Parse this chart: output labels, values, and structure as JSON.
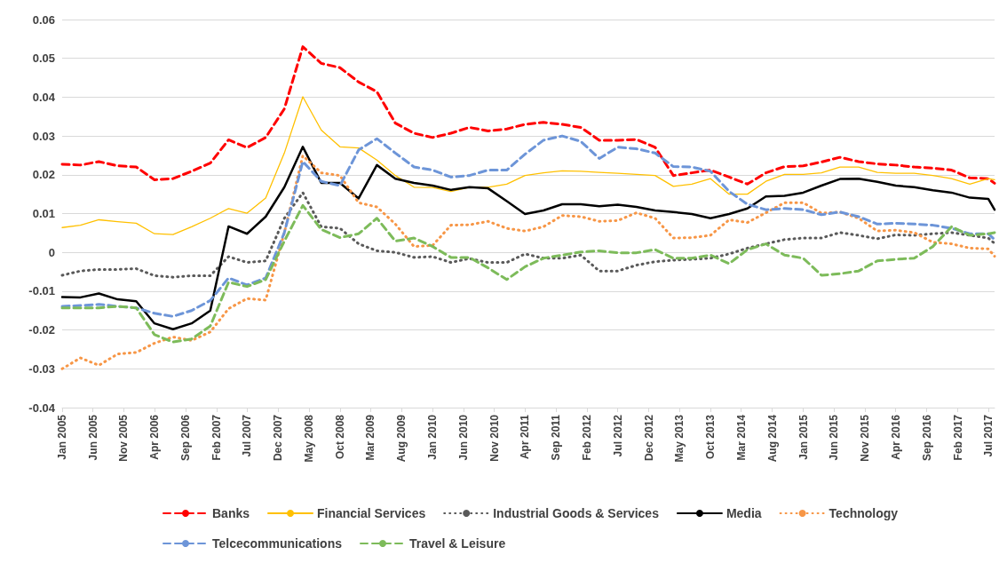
{
  "chart_data": {
    "type": "line",
    "grid": "y",
    "legend": "bottom",
    "marker": "none",
    "x": [
      "2005-01",
      "2005-04",
      "2005-07",
      "2005-10",
      "2006-01",
      "2006-04",
      "2006-07",
      "2006-10",
      "2007-01",
      "2007-04",
      "2007-07",
      "2007-10",
      "2008-01",
      "2008-04",
      "2008-07",
      "2008-10",
      "2009-01",
      "2009-04",
      "2009-07",
      "2009-10",
      "2010-01",
      "2010-04",
      "2010-07",
      "2010-10",
      "2011-01",
      "2011-04",
      "2011-07",
      "2011-10",
      "2012-01",
      "2012-04",
      "2012-07",
      "2012-10",
      "2013-01",
      "2013-04",
      "2013-07",
      "2013-10",
      "2014-01",
      "2014-04",
      "2014-07",
      "2014-10",
      "2015-01",
      "2015-04",
      "2015-07",
      "2015-10",
      "2016-01",
      "2016-04",
      "2016-07",
      "2016-10",
      "2017-01",
      "2017-04",
      "2017-07",
      "2017-08"
    ],
    "xlim": [
      "2005-01",
      "2017-08"
    ],
    "xticks": [
      {
        "value": "2005-01",
        "label": "Jan 2005"
      },
      {
        "value": "2005-06",
        "label": "Jun 2005"
      },
      {
        "value": "2005-11",
        "label": "Nov 2005"
      },
      {
        "value": "2006-04",
        "label": "Apr 2006"
      },
      {
        "value": "2006-09",
        "label": "Sep 2006"
      },
      {
        "value": "2007-02",
        "label": "Feb 2007"
      },
      {
        "value": "2007-07",
        "label": "Jul 2007"
      },
      {
        "value": "2007-12",
        "label": "Dec 2007"
      },
      {
        "value": "2008-05",
        "label": "May 2008"
      },
      {
        "value": "2008-10",
        "label": "Oct 2008"
      },
      {
        "value": "2009-03",
        "label": "Mar 2009"
      },
      {
        "value": "2009-08",
        "label": "Aug 2009"
      },
      {
        "value": "2010-01",
        "label": "Jan 2010"
      },
      {
        "value": "2010-06",
        "label": "Jun 2010"
      },
      {
        "value": "2010-11",
        "label": "Nov 2010"
      },
      {
        "value": "2011-04",
        "label": "Apr 2011"
      },
      {
        "value": "2011-09",
        "label": "Sep 2011"
      },
      {
        "value": "2012-02",
        "label": "Feb 2012"
      },
      {
        "value": "2012-07",
        "label": "Jul 2012"
      },
      {
        "value": "2012-12",
        "label": "Dec 2012"
      },
      {
        "value": "2013-05",
        "label": "May 2013"
      },
      {
        "value": "2013-10",
        "label": "Oct 2013"
      },
      {
        "value": "2014-03",
        "label": "Mar 2014"
      },
      {
        "value": "2014-08",
        "label": "Aug 2014"
      },
      {
        "value": "2015-01",
        "label": "Jan 2015"
      },
      {
        "value": "2015-06",
        "label": "Jun 2015"
      },
      {
        "value": "2015-11",
        "label": "Nov 2015"
      },
      {
        "value": "2016-04",
        "label": "Apr 2016"
      },
      {
        "value": "2016-09",
        "label": "Sep 2016"
      },
      {
        "value": "2017-02",
        "label": "Feb 2017"
      },
      {
        "value": "2017-07",
        "label": "Jul 2017"
      }
    ],
    "ylim": [
      -0.04,
      0.06
    ],
    "yticks": [
      -0.04,
      -0.03,
      -0.02,
      -0.01,
      0,
      0.01,
      0.02,
      0.03,
      0.04,
      0.05,
      0.06
    ],
    "series": [
      {
        "name": "Banks",
        "color": "#ff0000",
        "line_style": "dashed",
        "values": [
          0.0227,
          0.0225,
          0.0234,
          0.0223,
          0.022,
          0.0187,
          0.019,
          0.0209,
          0.023,
          0.029,
          0.027,
          0.0296,
          0.037,
          0.053,
          0.0487,
          0.0476,
          0.0439,
          0.0414,
          0.0333,
          0.0307,
          0.0296,
          0.0307,
          0.0322,
          0.0313,
          0.0318,
          0.033,
          0.0335,
          0.033,
          0.0322,
          0.0289,
          0.0289,
          0.0291,
          0.0271,
          0.0198,
          0.0205,
          0.0212,
          0.0194,
          0.0176,
          0.0205,
          0.0221,
          0.0223,
          0.0233,
          0.0245,
          0.0234,
          0.0228,
          0.0225,
          0.022,
          0.0217,
          0.0212,
          0.0192,
          0.019,
          0.0178
        ]
      },
      {
        "name": "Financial Services",
        "color": "#ffc000",
        "line_style": "solid",
        "values": [
          0.0064,
          0.007,
          0.0084,
          0.0079,
          0.0075,
          0.0048,
          0.0046,
          0.0066,
          0.0088,
          0.0113,
          0.0101,
          0.014,
          0.0256,
          0.0401,
          0.0315,
          0.0272,
          0.0269,
          0.0238,
          0.0198,
          0.0168,
          0.0167,
          0.0157,
          0.0168,
          0.0168,
          0.0176,
          0.0198,
          0.0205,
          0.021,
          0.0209,
          0.0206,
          0.0204,
          0.0201,
          0.0198,
          0.017,
          0.0176,
          0.019,
          0.015,
          0.015,
          0.0183,
          0.0201,
          0.0201,
          0.0205,
          0.022,
          0.022,
          0.0206,
          0.0204,
          0.0204,
          0.0198,
          0.019,
          0.0176,
          0.019,
          0.0187
        ]
      },
      {
        "name": "Industrial Goods & Services",
        "color": "#595959",
        "line_style": "dotted",
        "values": [
          -0.0059,
          -0.0048,
          -0.0044,
          -0.0044,
          -0.0042,
          -0.006,
          -0.0064,
          -0.006,
          -0.006,
          -0.0011,
          -0.0026,
          -0.0022,
          0.0088,
          0.0154,
          0.0066,
          0.0062,
          0.0022,
          0.0004,
          0,
          -0.0013,
          -0.0011,
          -0.0026,
          -0.0016,
          -0.0026,
          -0.0026,
          -0.0004,
          -0.0015,
          -0.0015,
          -0.0007,
          -0.0048,
          -0.0048,
          -0.0033,
          -0.0024,
          -0.002,
          -0.0018,
          -0.0015,
          -0.0004,
          0.0011,
          0.0022,
          0.0033,
          0.0037,
          0.0037,
          0.0051,
          0.0044,
          0.0035,
          0.0045,
          0.0044,
          0.0048,
          0.0051,
          0.0044,
          0.0037,
          0.0023
        ]
      },
      {
        "name": "Media",
        "color": "#000000",
        "line_style": "solid",
        "values": [
          -0.0115,
          -0.0116,
          -0.0106,
          -0.0121,
          -0.0126,
          -0.0183,
          -0.0198,
          -0.0183,
          -0.015,
          0.0067,
          0.0048,
          0.0092,
          0.0168,
          0.0272,
          0.0179,
          0.0179,
          0.0139,
          0.0225,
          0.019,
          0.0179,
          0.0172,
          0.0161,
          0.0168,
          0.0165,
          0.0132,
          0.0099,
          0.0108,
          0.0124,
          0.0124,
          0.0119,
          0.0123,
          0.0117,
          0.0108,
          0.0104,
          0.0099,
          0.0088,
          0.0099,
          0.0113,
          0.0144,
          0.0146,
          0.0154,
          0.0172,
          0.0189,
          0.019,
          0.0182,
          0.0172,
          0.0168,
          0.016,
          0.0154,
          0.0141,
          0.0138,
          0.011
        ]
      },
      {
        "name": "Technology",
        "color": "#f79646",
        "line_style": "dotted",
        "values": [
          -0.03,
          -0.0272,
          -0.0291,
          -0.0262,
          -0.0258,
          -0.0234,
          -0.0218,
          -0.0227,
          -0.0205,
          -0.0145,
          -0.0119,
          -0.0123,
          0.0051,
          0.0249,
          0.0205,
          0.0198,
          0.0128,
          0.0117,
          0.0073,
          0.0015,
          0.0018,
          0.007,
          0.0071,
          0.008,
          0.0062,
          0.0055,
          0.0066,
          0.0095,
          0.0092,
          0.008,
          0.0082,
          0.0102,
          0.0088,
          0.0037,
          0.0038,
          0.0044,
          0.0084,
          0.0077,
          0.0102,
          0.0128,
          0.0128,
          0.0101,
          0.0104,
          0.0088,
          0.0055,
          0.0057,
          0.0051,
          0.0026,
          0.0022,
          0.0011,
          0.0009,
          -0.001
        ]
      },
      {
        "name": "Telcecommunications",
        "color": "#6d95d8",
        "line_style": "dashed",
        "values": [
          -0.0139,
          -0.0137,
          -0.0134,
          -0.0139,
          -0.0143,
          -0.0157,
          -0.0165,
          -0.015,
          -0.0124,
          -0.0066,
          -0.0084,
          -0.0066,
          0.0051,
          0.0234,
          0.0183,
          0.0172,
          0.0264,
          0.0293,
          0.0256,
          0.022,
          0.0212,
          0.0194,
          0.0198,
          0.0212,
          0.0212,
          0.0253,
          0.0289,
          0.03,
          0.0286,
          0.0242,
          0.0271,
          0.0267,
          0.0256,
          0.0221,
          0.022,
          0.0209,
          0.0157,
          0.0124,
          0.011,
          0.0113,
          0.011,
          0.0097,
          0.0104,
          0.0092,
          0.0073,
          0.0075,
          0.0073,
          0.007,
          0.0062,
          0.0048,
          0.0048,
          0.0033
        ]
      },
      {
        "name": "Travel & Leisure",
        "color": "#7dbb5a",
        "line_style": "dashed",
        "values": [
          -0.0143,
          -0.0143,
          -0.0143,
          -0.0139,
          -0.0143,
          -0.0212,
          -0.0231,
          -0.0223,
          -0.019,
          -0.0077,
          -0.0088,
          -0.007,
          0.0029,
          0.0121,
          0.0059,
          0.0038,
          0.0048,
          0.0088,
          0.0029,
          0.0037,
          0.0015,
          -0.0013,
          -0.0013,
          -0.004,
          -0.007,
          -0.0037,
          -0.0015,
          -0.0007,
          0.0001,
          0.0004,
          -0.0001,
          -0.0001,
          0.0007,
          -0.0015,
          -0.0015,
          -0.0007,
          -0.0029,
          0.0007,
          0.0022,
          -0.0007,
          -0.0015,
          -0.0059,
          -0.0055,
          -0.0048,
          -0.0022,
          -0.0018,
          -0.0015,
          0.0015,
          0.0066,
          0.0044,
          0.0048,
          0.0051
        ]
      }
    ]
  }
}
